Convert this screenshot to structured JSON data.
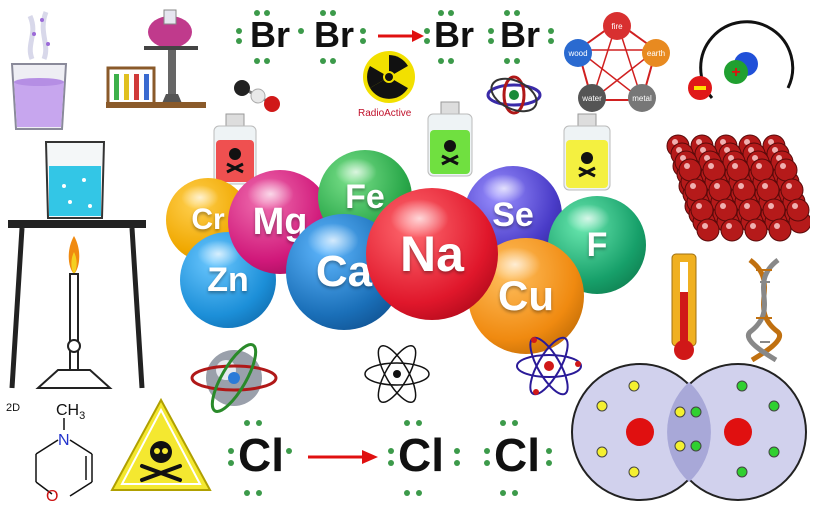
{
  "top_equation": {
    "left": [
      "Br",
      "Br"
    ],
    "right": [
      "Br",
      "Br"
    ]
  },
  "bottom_equation": {
    "left": [
      "Cl"
    ],
    "right": [
      "Cl",
      "Cl"
    ]
  },
  "radioactive_label": "RadioActive",
  "molecule": {
    "label_2d": "2D",
    "methyl": "CH",
    "methyl_sub": "3",
    "nitrogen": "N",
    "oxygen": "O"
  },
  "element_balls": [
    {
      "symbol": "Cr",
      "color": "#f0a800"
    },
    {
      "symbol": "Mg",
      "color": "#d0187a"
    },
    {
      "symbol": "Fe",
      "color": "#2aa84a"
    },
    {
      "symbol": "Zn",
      "color": "#1c8fd8"
    },
    {
      "symbol": "Ca",
      "color": "#1a6fb8"
    },
    {
      "symbol": "Na",
      "color": "#e0172b"
    },
    {
      "symbol": "Se",
      "color": "#4a3cc8"
    },
    {
      "symbol": "F",
      "color": "#17a06a"
    },
    {
      "symbol": "Cu",
      "color": "#f08a10"
    }
  ],
  "elements_wheel": [
    "fire",
    "wood",
    "earth",
    "water",
    "metal"
  ],
  "colors": {
    "arrow": "#e01010",
    "electron_dot": "#3c9a4a",
    "venn_fill": "#c9c9ea",
    "beaker_liquid": "#c7a6ee",
    "water_liquid": "#33c6e6"
  }
}
